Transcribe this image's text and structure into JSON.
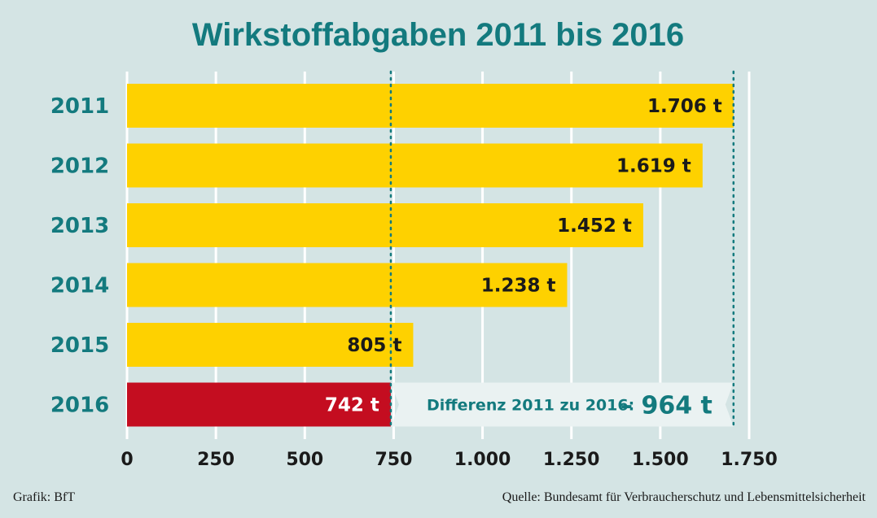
{
  "chart_data": {
    "type": "bar",
    "orientation": "horizontal",
    "title": "Wirkstoffabgaben 2011 bis 2016",
    "categories": [
      "2011",
      "2012",
      "2013",
      "2014",
      "2015",
      "2016"
    ],
    "values": [
      1706,
      1619,
      1452,
      1238,
      805,
      742
    ],
    "value_labels": [
      "1.706 t",
      "1.619 t",
      "1.452 t",
      "1.238 t",
      "805 t",
      "742 t"
    ],
    "xlim": [
      0,
      1750
    ],
    "ticks": [
      0,
      250,
      500,
      750,
      1000,
      1250,
      1500,
      1750
    ],
    "tick_labels": [
      "0",
      "250",
      "500",
      "750",
      "1.000",
      "1.250",
      "1.500",
      "1.750"
    ],
    "grid": true,
    "colors": {
      "default": "#fed100",
      "highlight": "#c40d20",
      "accent": "#137a7e",
      "background": "#d4e4e4"
    },
    "highlight_index": 5,
    "reference_lines": [
      742,
      1706
    ],
    "annotation": {
      "text": "Differenz 2011 zu 2016:",
      "value": "– 964 t"
    }
  },
  "footer": {
    "left": "Grafik: BfT",
    "right": "Quelle: Bundesamt für Verbraucherschutz und Lebensmittelsicherheit"
  }
}
